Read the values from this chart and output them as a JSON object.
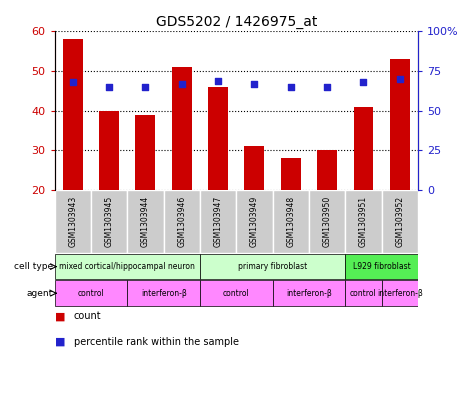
{
  "title": "GDS5202 / 1426975_at",
  "samples": [
    "GSM1303943",
    "GSM1303945",
    "GSM1303944",
    "GSM1303946",
    "GSM1303947",
    "GSM1303949",
    "GSM1303948",
    "GSM1303950",
    "GSM1303951",
    "GSM1303952"
  ],
  "counts": [
    58,
    40,
    39,
    51,
    46,
    31,
    28,
    30,
    41,
    53
  ],
  "percentiles": [
    68,
    65,
    65,
    67,
    69,
    67,
    65,
    65,
    68,
    70
  ],
  "ylim_left": [
    20,
    60
  ],
  "ylim_right": [
    0,
    100
  ],
  "yticks_left": [
    20,
    30,
    40,
    50,
    60
  ],
  "yticks_right": [
    0,
    25,
    50,
    75,
    100
  ],
  "ytick_labels_right": [
    "0",
    "25",
    "50",
    "75",
    "100%"
  ],
  "bar_color": "#cc0000",
  "dot_color": "#2222cc",
  "bar_width": 0.55,
  "cell_types": [
    {
      "label": "mixed cortical/hippocampal neuron",
      "start": 0,
      "end": 4,
      "color": "#ccffcc"
    },
    {
      "label": "primary fibroblast",
      "start": 4,
      "end": 8,
      "color": "#ccffcc"
    },
    {
      "label": "L929 fibroblast",
      "start": 8,
      "end": 10,
      "color": "#55ee55"
    }
  ],
  "agents": [
    {
      "label": "control",
      "start": 0,
      "end": 2
    },
    {
      "label": "interferon-β",
      "start": 2,
      "end": 4
    },
    {
      "label": "control",
      "start": 4,
      "end": 6
    },
    {
      "label": "interferon-β",
      "start": 6,
      "end": 8
    },
    {
      "label": "control",
      "start": 8,
      "end": 9
    },
    {
      "label": "interferon-β",
      "start": 9,
      "end": 10
    }
  ],
  "agent_color": "#ff88ff",
  "legend_count_color": "#cc0000",
  "legend_dot_color": "#2222cc",
  "axis_color_left": "#cc0000",
  "axis_color_right": "#2222cc",
  "sample_bg_color": "#cccccc",
  "sample_sep_color": "#ffffff"
}
